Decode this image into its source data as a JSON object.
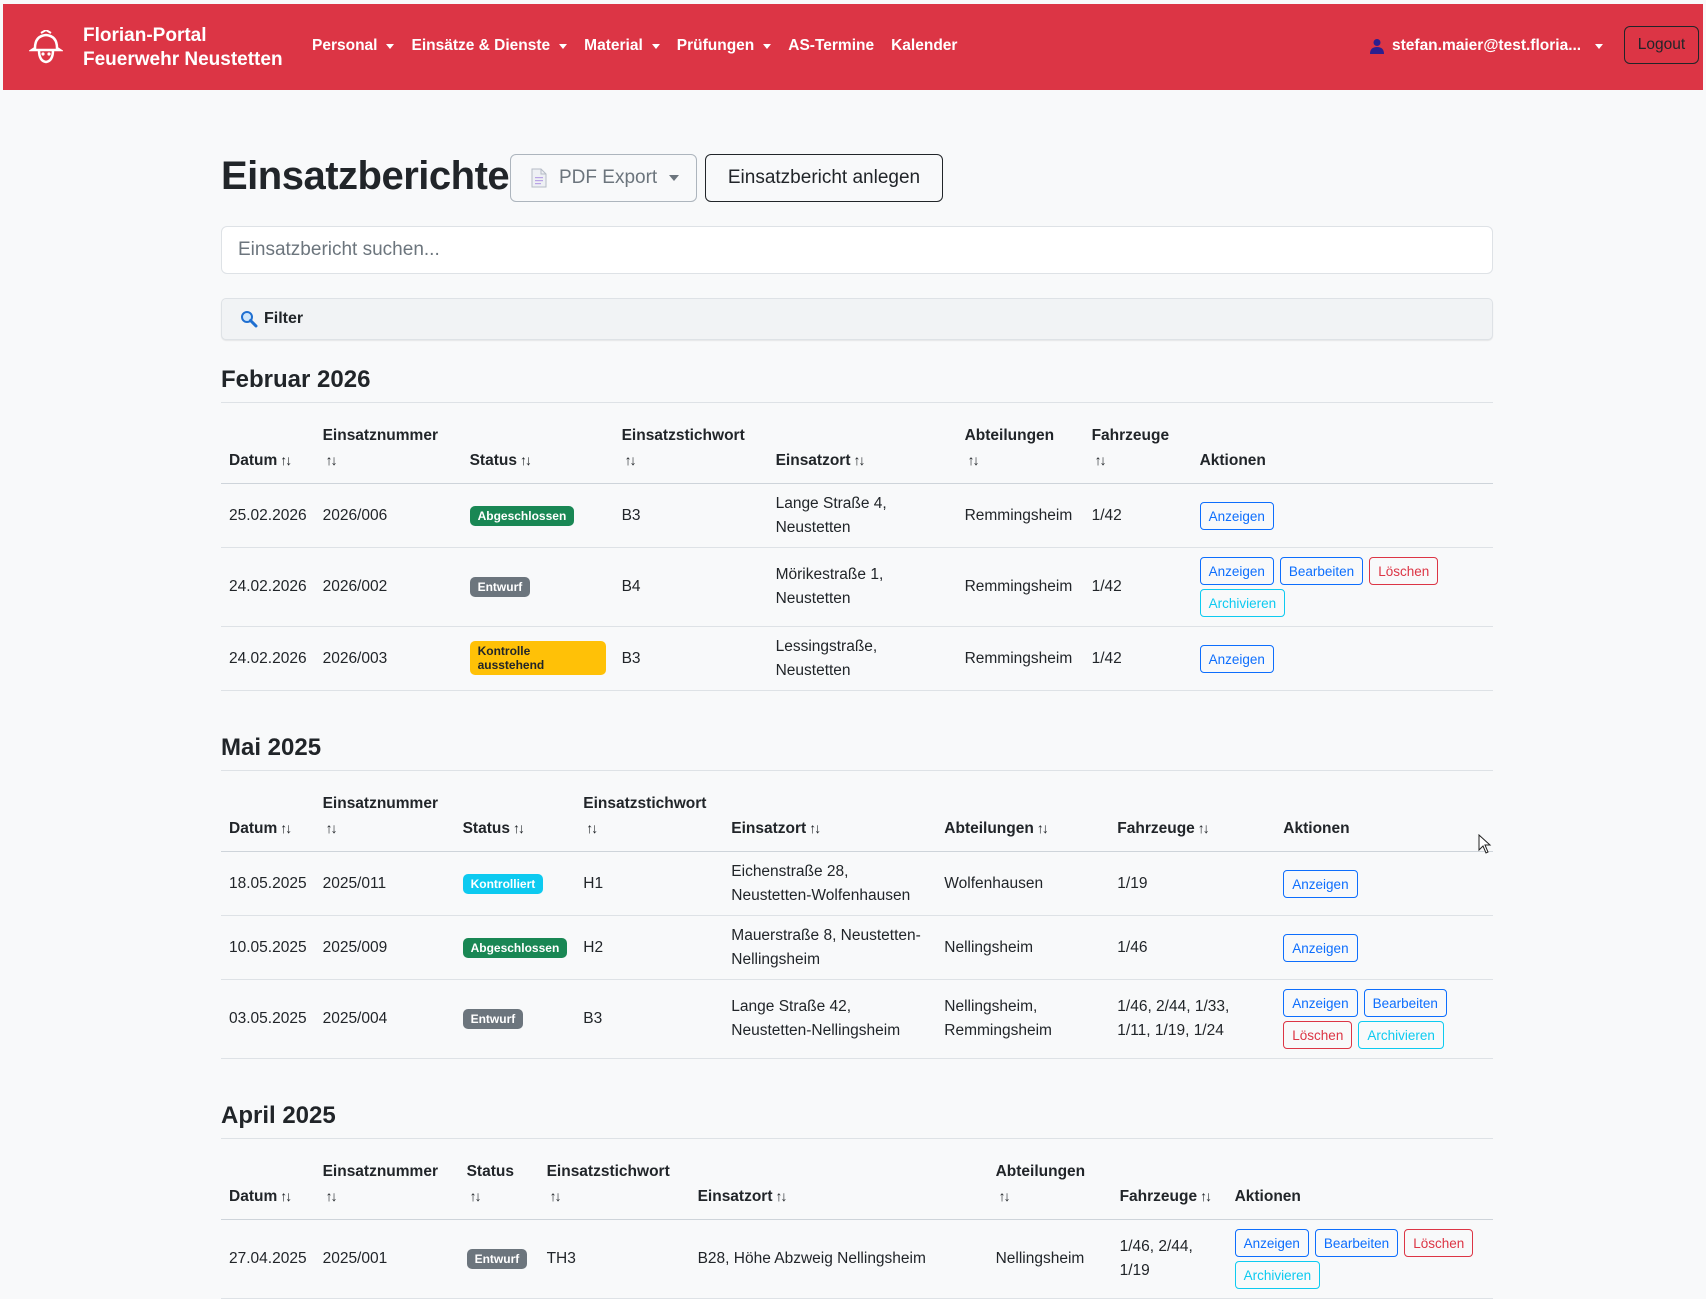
{
  "navbar": {
    "brand_line1": "Florian-Portal",
    "brand_line2": "Feuerwehr Neustetten",
    "items": [
      {
        "label": "Personal",
        "dropdown": true
      },
      {
        "label": "Einsätze & Dienste",
        "dropdown": true
      },
      {
        "label": "Material",
        "dropdown": true
      },
      {
        "label": "Prüfungen",
        "dropdown": true
      },
      {
        "label": "AS-Termine",
        "dropdown": false
      },
      {
        "label": "Kalender",
        "dropdown": false
      }
    ],
    "user": "stefan.maier@test.floria...",
    "logout": "Logout",
    "bg_color": "#dc3545"
  },
  "page": {
    "title": "Einsatzberichte",
    "pdf_export": "PDF Export",
    "new_report": "Einsatzbericht anlegen",
    "search_placeholder": "Einsatzbericht suchen...",
    "filter_label": "Filter"
  },
  "sections": [
    {
      "month": "Februar 2026",
      "headers": {
        "datum": "Datum",
        "nummer": "Einsatznummer",
        "status": "Status",
        "stichwort": "Einsatzstichwort",
        "ort": "Einsatzort",
        "abteilungen": "Abteilungen",
        "fahrzeuge": "Fahrzeuge",
        "aktionen": "Aktionen"
      },
      "rows": [
        {
          "datum": "25.02.2026",
          "nummer": "2026/006",
          "status": "Abgeschlossen",
          "stichwort": "B3",
          "ort_1": "Lange Straße 4,",
          "ort_2": "Neustetten",
          "abteilungen_1": "Remmingsheim",
          "abteilungen_2": "",
          "fahrzeuge_1": "1/42",
          "fahrzeuge_2": "",
          "actions": [
            "Anzeigen"
          ]
        },
        {
          "datum": "24.02.2026",
          "nummer": "2026/002",
          "status": "Entwurf",
          "stichwort": "B4",
          "ort_1": "Mörikestraße 1,",
          "ort_2": "Neustetten",
          "abteilungen_1": "Remmingsheim",
          "abteilungen_2": "",
          "fahrzeuge_1": "1/42",
          "fahrzeuge_2": "",
          "actions": [
            "Anzeigen",
            "Bearbeiten",
            "Löschen",
            "Archivieren"
          ]
        },
        {
          "datum": "24.02.2026",
          "nummer": "2026/003",
          "status": "Kontrolle ausstehend",
          "stichwort": "B3",
          "ort_1": "Lessingstraße,",
          "ort_2": "Neustetten",
          "abteilungen_1": "Remmingsheim",
          "abteilungen_2": "",
          "fahrzeuge_1": "1/42",
          "fahrzeuge_2": "",
          "actions": [
            "Anzeigen"
          ]
        }
      ]
    },
    {
      "month": "Mai 2025",
      "headers": {
        "datum": "Datum",
        "nummer": "Einsatznummer",
        "status": "Status",
        "stichwort": "Einsatzstichwort",
        "ort": "Einsatzort",
        "abteilungen": "Abteilungen",
        "fahrzeuge": "Fahrzeuge",
        "aktionen": "Aktionen"
      },
      "rows": [
        {
          "datum": "18.05.2025",
          "nummer": "2025/011",
          "status": "Kontrolliert",
          "stichwort": "H1",
          "ort_1": "Eichenstraße 28,",
          "ort_2": "Neustetten-Wolfenhausen",
          "abteilungen_1": "Wolfenhausen",
          "abteilungen_2": "",
          "fahrzeuge_1": "1/19",
          "fahrzeuge_2": "",
          "actions": [
            "Anzeigen"
          ]
        },
        {
          "datum": "10.05.2025",
          "nummer": "2025/009",
          "status": "Abgeschlossen",
          "stichwort": "H2",
          "ort_1": "Mauerstraße 8, Neustetten-",
          "ort_2": "Nellingsheim",
          "abteilungen_1": "Nellingsheim",
          "abteilungen_2": "",
          "fahrzeuge_1": "1/46",
          "fahrzeuge_2": "",
          "actions": [
            "Anzeigen"
          ]
        },
        {
          "datum": "03.05.2025",
          "nummer": "2025/004",
          "status": "Entwurf",
          "stichwort": "B3",
          "ort_1": "Lange Straße 42,",
          "ort_2": "Neustetten-Nellingsheim",
          "abteilungen_1": "Nellingsheim,",
          "abteilungen_2": "Remmingsheim",
          "fahrzeuge_1": "1/46, 2/44, 1/33,",
          "fahrzeuge_2": "1/11, 1/19, 1/24",
          "actions": [
            "Anzeigen",
            "Bearbeiten",
            "Löschen",
            "Archivieren"
          ]
        }
      ]
    },
    {
      "month": "April 2025",
      "headers": {
        "datum": "Datum",
        "nummer": "Einsatznummer",
        "status": "Status",
        "stichwort": "Einsatzstichwort",
        "ort": "Einsatzort",
        "abteilungen": "Abteilungen",
        "fahrzeuge": "Fahrzeuge",
        "aktionen": "Aktionen"
      },
      "rows": [
        {
          "datum": "27.04.2025",
          "nummer": "2025/001",
          "status": "Entwurf",
          "stichwort": "TH3",
          "ort_1": "B28, Höhe Abzweig Nellingsheim",
          "ort_2": "",
          "abteilungen_1": "Nellingsheim",
          "abteilungen_2": "",
          "fahrzeuge_1": "1/46, 2/44,",
          "fahrzeuge_2": "1/19",
          "actions": [
            "Anzeigen",
            "Bearbeiten",
            "Löschen",
            "Archivieren"
          ]
        }
      ]
    }
  ]
}
